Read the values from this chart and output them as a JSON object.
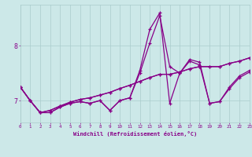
{
  "xlabel": "Windchill (Refroidissement éolien,°C)",
  "background_color": "#cce8e8",
  "line_color": "#880088",
  "grid_color": "#aacccc",
  "axis_label_color": "#880088",
  "tick_label_color": "#880088",
  "hours": [
    0,
    1,
    2,
    3,
    4,
    5,
    6,
    7,
    8,
    9,
    10,
    11,
    12,
    13,
    14,
    15,
    16,
    17,
    18,
    19,
    20,
    21,
    22,
    23
  ],
  "series1": [
    7.25,
    7.0,
    6.78,
    6.78,
    6.88,
    6.95,
    6.98,
    6.95,
    7.0,
    6.82,
    7.0,
    7.05,
    7.55,
    8.3,
    8.6,
    6.95,
    7.5,
    7.75,
    7.7,
    6.95,
    6.98,
    7.25,
    7.45,
    7.55
  ],
  "series2": [
    7.25,
    7.0,
    6.78,
    6.82,
    6.9,
    6.97,
    7.02,
    7.05,
    7.1,
    7.15,
    7.22,
    7.28,
    7.35,
    7.42,
    7.48,
    7.48,
    7.52,
    7.58,
    7.62,
    7.62,
    7.62,
    7.68,
    7.72,
    7.78
  ],
  "series3": [
    7.25,
    7.0,
    6.78,
    6.78,
    6.88,
    6.95,
    6.98,
    6.95,
    7.0,
    6.82,
    7.0,
    7.05,
    7.5,
    8.05,
    8.55,
    7.62,
    7.5,
    7.72,
    7.65,
    6.95,
    6.98,
    7.22,
    7.42,
    7.52
  ],
  "series4": [
    7.25,
    7.0,
    6.78,
    6.82,
    6.9,
    6.97,
    7.02,
    7.05,
    7.1,
    7.15,
    7.22,
    7.28,
    7.35,
    7.42,
    7.48,
    7.48,
    7.52,
    7.58,
    7.62,
    7.62,
    7.62,
    7.68,
    7.72,
    7.78
  ],
  "xlim": [
    0,
    23
  ],
  "ylim": [
    6.6,
    8.75
  ],
  "ytick_positions": [
    7.0,
    8.0
  ],
  "ytick_labels": [
    "7",
    "8"
  ],
  "xticks": [
    0,
    1,
    2,
    3,
    4,
    5,
    6,
    7,
    8,
    9,
    10,
    11,
    12,
    13,
    14,
    15,
    16,
    17,
    18,
    19,
    20,
    21,
    22,
    23
  ]
}
